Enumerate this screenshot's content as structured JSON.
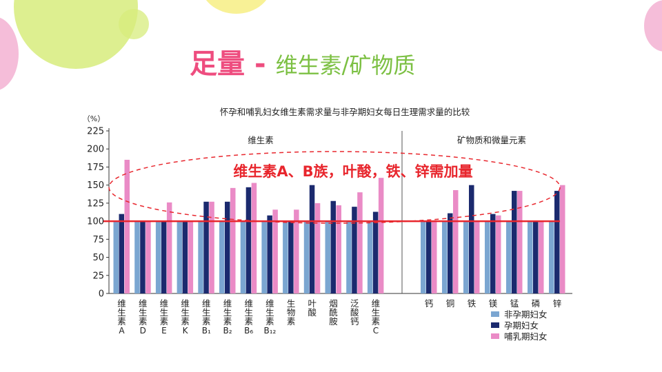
{
  "slide": {
    "title_main": "足量",
    "title_dash": "-",
    "title_sub": "维生素/矿物质",
    "colors": {
      "title_main": "#ee4d7f",
      "title_sub": "#7cc043",
      "highlight": "#e8262d",
      "deco_green": "#d7ec7c",
      "deco_yellow": "#f7ef84",
      "deco_pink": "#f2a7cc"
    }
  },
  "chart_data": {
    "type": "bar",
    "title": "怀孕和哺乳妇女维生素需求量与非孕期妇女每日生理需求量的比较",
    "ylabel": "（%）",
    "ylim": [
      0,
      225
    ],
    "yticks": [
      0,
      25,
      50,
      75,
      100,
      125,
      150,
      175,
      200,
      225
    ],
    "grid": false,
    "legend_position": "bottom-right",
    "groups": [
      {
        "name": "维生素",
        "count": 13
      },
      {
        "name": "矿物质和微量元素",
        "count": 7
      }
    ],
    "categories": [
      [
        "维",
        "生",
        "素",
        "A"
      ],
      [
        "维",
        "生",
        "素",
        "D"
      ],
      [
        "维",
        "生",
        "素",
        "E"
      ],
      [
        "维",
        "生",
        "素",
        "K"
      ],
      [
        "维",
        "生",
        "素",
        "B₁"
      ],
      [
        "维",
        "生",
        "素",
        "B₂"
      ],
      [
        "维",
        "生",
        "素",
        "B₆"
      ],
      [
        "维",
        "生",
        "素",
        "B₁₂"
      ],
      [
        "生",
        "物",
        "素"
      ],
      [
        "叶",
        "酸"
      ],
      [
        "烟",
        "酰",
        "胺"
      ],
      [
        "泛",
        "酸",
        "钙"
      ],
      [
        "维",
        "生",
        "素",
        "C"
      ],
      [
        "钙"
      ],
      [
        "铜"
      ],
      [
        "铁"
      ],
      [
        "镁"
      ],
      [
        "锰"
      ],
      [
        "磷"
      ],
      [
        "锌"
      ]
    ],
    "series": [
      {
        "name": "非孕期妇女",
        "color": "#7ba6d1",
        "values": [
          100,
          100,
          100,
          100,
          100,
          100,
          100,
          100,
          100,
          100,
          100,
          100,
          100,
          100,
          100,
          100,
          100,
          100,
          100,
          100
        ]
      },
      {
        "name": "孕期妇女",
        "color": "#1b2a6e",
        "values": [
          110,
          100,
          100,
          100,
          127,
          127,
          147,
          108,
          100,
          150,
          128,
          120,
          113,
          100,
          111,
          150,
          110,
          142,
          100,
          142
        ]
      },
      {
        "name": "哺乳期妇女",
        "color": "#ea8bc6",
        "values": [
          185,
          100,
          126,
          100,
          127,
          146,
          153,
          116,
          116,
          125,
          122,
          140,
          160,
          100,
          143,
          100,
          108,
          142,
          100,
          150
        ]
      }
    ],
    "reference_line": {
      "value": 100,
      "color": "#e8262d"
    },
    "annotation": "维生素A、B族，叶酸，铁、锌需加量"
  }
}
